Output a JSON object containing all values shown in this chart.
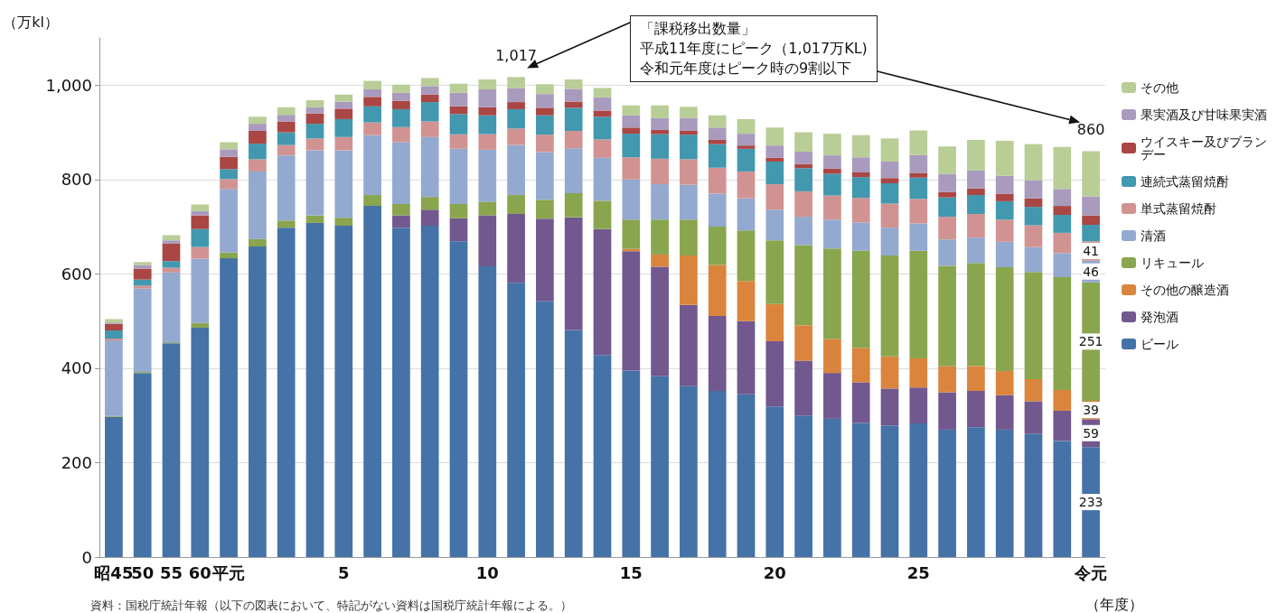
{
  "chart_data": {
    "type": "bar",
    "stacked": true,
    "categories": [
      "昭45",
      "50",
      "55",
      "60",
      "平元",
      null,
      null,
      null,
      "5",
      null,
      null,
      null,
      null,
      "10",
      null,
      null,
      null,
      null,
      "15",
      null,
      null,
      null,
      null,
      "20",
      null,
      null,
      null,
      null,
      "25",
      null,
      null,
      null,
      null,
      null,
      "令元"
    ],
    "series": [
      {
        "name": "ビール",
        "color": "#4572a7",
        "values": [
          297,
          390,
          453,
          486,
          633,
          658,
          698,
          708,
          702,
          744,
          698,
          702,
          669,
          616,
          581,
          542,
          481,
          428,
          395,
          383,
          362,
          352,
          345,
          319,
          300,
          293,
          284,
          279,
          283,
          270,
          275,
          270,
          261,
          246,
          233
        ],
        "value_labels": [
          null,
          null,
          null,
          null,
          null,
          null,
          null,
          null,
          null,
          null,
          null,
          null,
          null,
          null,
          null,
          null,
          null,
          null,
          null,
          null,
          null,
          null,
          null,
          null,
          null,
          null,
          null,
          null,
          null,
          null,
          null,
          null,
          null,
          null,
          "233"
        ]
      },
      {
        "name": "発泡酒",
        "color": "#71588f",
        "values": [
          null,
          null,
          null,
          null,
          null,
          null,
          null,
          null,
          null,
          null,
          26,
          34,
          49,
          108,
          146,
          175,
          239,
          267,
          253,
          232,
          172,
          159,
          155,
          138,
          116,
          97,
          86,
          78,
          76,
          79,
          77,
          73,
          69,
          64,
          59
        ],
        "value_labels": [
          null,
          null,
          null,
          null,
          null,
          null,
          null,
          null,
          null,
          null,
          null,
          null,
          null,
          null,
          null,
          null,
          null,
          null,
          null,
          null,
          null,
          null,
          null,
          null,
          null,
          null,
          null,
          null,
          null,
          null,
          null,
          null,
          null,
          null,
          "59"
        ]
      },
      {
        "name": "その他の醸造酒",
        "color": "#db843d",
        "values": [
          null,
          null,
          null,
          null,
          null,
          null,
          null,
          null,
          null,
          null,
          null,
          null,
          null,
          null,
          null,
          null,
          null,
          null,
          5,
          26,
          105,
          108,
          85,
          79,
          75,
          72,
          73,
          68,
          62,
          55,
          53,
          51,
          47,
          44,
          39
        ],
        "value_labels": [
          null,
          null,
          null,
          null,
          null,
          null,
          null,
          null,
          null,
          null,
          null,
          null,
          null,
          null,
          null,
          null,
          null,
          null,
          null,
          null,
          null,
          null,
          null,
          null,
          null,
          null,
          null,
          null,
          null,
          null,
          null,
          null,
          null,
          null,
          "39"
        ]
      },
      {
        "name": "リキュール",
        "color": "#89a54e",
        "values": [
          2,
          2,
          2,
          10,
          12,
          16,
          15,
          16,
          17,
          23,
          24,
          27,
          30,
          29,
          40,
          40,
          51,
          60,
          62,
          74,
          76,
          81,
          107,
          135,
          170,
          192,
          206,
          214,
          228,
          213,
          218,
          220,
          227,
          239,
          251
        ],
        "value_labels": [
          null,
          null,
          null,
          null,
          null,
          null,
          null,
          null,
          null,
          null,
          null,
          null,
          null,
          null,
          null,
          null,
          null,
          null,
          null,
          null,
          null,
          null,
          null,
          null,
          null,
          null,
          null,
          null,
          null,
          null,
          null,
          null,
          null,
          null,
          "251"
        ]
      },
      {
        "name": "清酒",
        "color": "#93a9cf",
        "values": [
          160,
          177,
          148,
          136,
          135,
          143,
          138,
          138,
          143,
          127,
          131,
          127,
          117,
          110,
          106,
          101,
          95,
          91,
          85,
          75,
          74,
          70,
          68,
          65,
          60,
          61,
          60,
          59,
          58,
          56,
          54,
          54,
          53,
          51,
          46
        ],
        "value_labels": [
          null,
          null,
          null,
          null,
          null,
          null,
          null,
          null,
          null,
          null,
          null,
          null,
          null,
          null,
          null,
          null,
          null,
          null,
          null,
          null,
          null,
          null,
          null,
          null,
          null,
          null,
          null,
          null,
          null,
          null,
          null,
          null,
          null,
          null,
          "46"
        ]
      },
      {
        "name": "単式蒸留焼酎",
        "color": "#d19392",
        "values": [
          4,
          6,
          10,
          25,
          21,
          26,
          22,
          25,
          28,
          27,
          32,
          33,
          31,
          33,
          35,
          37,
          37,
          39,
          47,
          54,
          54,
          55,
          57,
          54,
          54,
          51,
          52,
          51,
          52,
          48,
          50,
          47,
          46,
          43,
          41
        ],
        "value_labels": [
          null,
          null,
          null,
          null,
          null,
          null,
          null,
          null,
          null,
          null,
          null,
          null,
          null,
          null,
          null,
          null,
          null,
          null,
          null,
          null,
          null,
          null,
          null,
          null,
          null,
          null,
          null,
          null,
          null,
          null,
          null,
          null,
          null,
          null,
          "41"
        ]
      },
      {
        "name": "連続式蒸留焼酎",
        "color": "#4198af",
        "values": [
          17,
          13,
          14,
          38,
          21,
          33,
          27,
          31,
          38,
          34,
          38,
          41,
          43,
          40,
          41,
          41,
          49,
          48,
          50,
          52,
          52,
          50,
          48,
          48,
          49,
          46,
          44,
          43,
          45,
          41,
          40,
          39,
          39,
          38,
          35
        ]
      },
      {
        "name": "ウイスキー及びブランデー",
        "color": "#aa4643",
        "values": [
          14,
          23,
          37,
          29,
          26,
          27,
          23,
          22,
          22,
          20,
          18,
          16,
          16,
          17,
          15,
          16,
          13,
          13,
          13,
          9,
          9,
          9,
          7,
          8,
          9,
          11,
          10,
          11,
          10,
          11,
          14,
          16,
          18,
          19,
          20
        ]
      },
      {
        "name": "果実酒及び甘味果実酒",
        "color": "#a99bbd",
        "values": [
          3,
          8,
          7,
          9,
          16,
          15,
          14,
          13,
          15,
          16,
          17,
          18,
          29,
          38,
          29,
          29,
          27,
          28,
          26,
          25,
          26,
          26,
          25,
          26,
          26,
          28,
          32,
          35,
          38,
          39,
          38,
          38,
          38,
          36,
          40
        ]
      },
      {
        "name": "その他",
        "color": "#b9cd96",
        "values": [
          7,
          6,
          11,
          14,
          15,
          15,
          16,
          15,
          15,
          18,
          17,
          17,
          19,
          21,
          24,
          21,
          20,
          20,
          21,
          27,
          24,
          26,
          31,
          38,
          41,
          46,
          47,
          49,
          52,
          58,
          65,
          74,
          77,
          89,
          96
        ]
      }
    ],
    "totals": [
      null,
      null,
      null,
      null,
      null,
      null,
      null,
      null,
      null,
      null,
      null,
      null,
      null,
      null,
      "1,017",
      null,
      null,
      null,
      null,
      null,
      null,
      null,
      null,
      null,
      null,
      null,
      null,
      null,
      null,
      null,
      null,
      null,
      null,
      null,
      "860"
    ],
    "ylim": [
      0,
      1100
    ],
    "yticks": [
      0,
      200,
      400,
      600,
      800,
      {
        "value": 1000,
        "label": "1,000"
      }
    ],
    "ylabel": "（万kl）",
    "xlabel": "（年度）",
    "grid": "y",
    "legend": "right",
    "annotations": [
      "「課税移出数量」",
      "平成11年度にピーク（1,017万KL)",
      "令和元年度はピーク時の9割以下",
      "資料：国税庁統計年報（以下の図表において、特記がない資料は国税庁統計年報による。）"
    ]
  }
}
